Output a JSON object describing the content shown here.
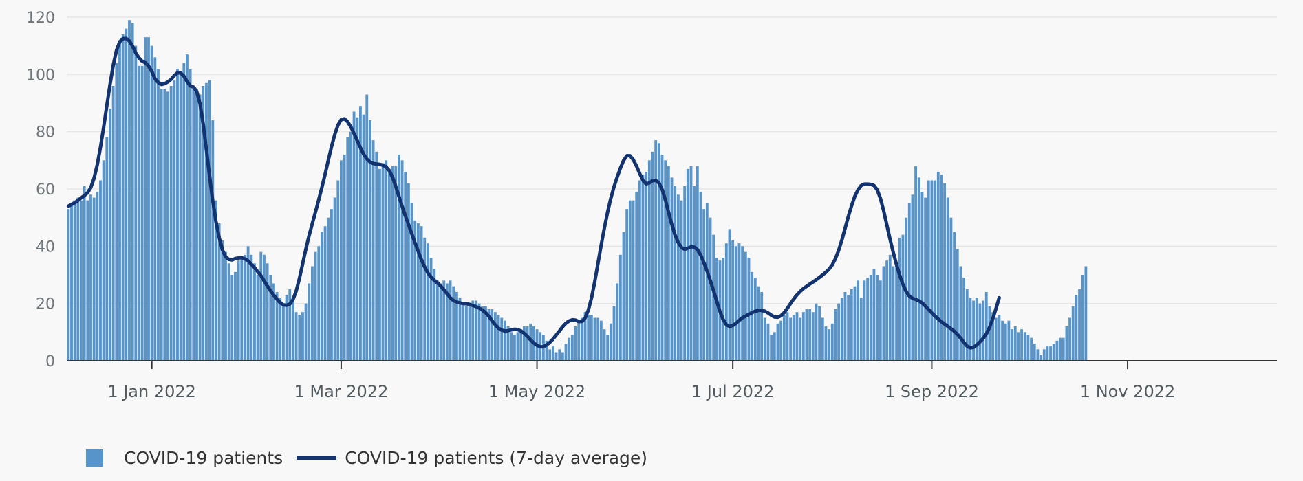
{
  "colors": {
    "bars": "#5694ca",
    "line": "#12336f",
    "grid": "#e6e6e6",
    "background": "#f8f8f8"
  },
  "chart_data": {
    "type": "bar",
    "title": "",
    "xlabel": "",
    "ylabel": "",
    "ylim": [
      0,
      120
    ],
    "yticks": [
      "0",
      "20",
      "40",
      "60",
      "80",
      "100",
      "120"
    ],
    "x_start_date": "2021-12-06",
    "x_end_date": "2022-12-17",
    "xticks": [
      {
        "date": "2022-01-01",
        "label": "1 Jan 2022"
      },
      {
        "date": "2022-03-01",
        "label": "1 Mar 2022"
      },
      {
        "date": "2022-05-01",
        "label": "1 May 2022"
      },
      {
        "date": "2022-07-01",
        "label": "1 Jul 2022"
      },
      {
        "date": "2022-09-01",
        "label": "1 Sep 2022"
      },
      {
        "date": "2022-11-01",
        "label": "1 Nov 2022"
      }
    ],
    "grid": true,
    "legend_position": "bottom-left",
    "series": [
      {
        "name": "COVID-19 patients",
        "type": "bar",
        "values": [
          53,
          55,
          56,
          57,
          56,
          61,
          56,
          58,
          57,
          59,
          63,
          70,
          78,
          88,
          96,
          104,
          111,
          114,
          116,
          119,
          118,
          110,
          103,
          103,
          113,
          113,
          110,
          106,
          102,
          95,
          95,
          94,
          96,
          98,
          102,
          100,
          104,
          107,
          102,
          96,
          95,
          93,
          96,
          97,
          98,
          84,
          56,
          48,
          42,
          38,
          34,
          30,
          31,
          35,
          36,
          37,
          40,
          37,
          34,
          30,
          38,
          37,
          34,
          30,
          27,
          24,
          22,
          20,
          23,
          25,
          21,
          17,
          16,
          17,
          20,
          27,
          33,
          38,
          40,
          45,
          47,
          50,
          53,
          57,
          63,
          70,
          72,
          78,
          80,
          87,
          85,
          89,
          86,
          93,
          84,
          77,
          73,
          67,
          69,
          70,
          67,
          68,
          68,
          72,
          70,
          66,
          62,
          55,
          49,
          48,
          47,
          43,
          41,
          36,
          32,
          28,
          27,
          28,
          27,
          28,
          26,
          24,
          22,
          20,
          19,
          20,
          21,
          21,
          20,
          19,
          19,
          18,
          18,
          17,
          16,
          15,
          14,
          12,
          10,
          9,
          10,
          11,
          12,
          12,
          13,
          12,
          11,
          10,
          9,
          7,
          4,
          5,
          3,
          4,
          3,
          6,
          8,
          9,
          12,
          14,
          15,
          17,
          16,
          16,
          15,
          15,
          14,
          11,
          9,
          13,
          19,
          27,
          37,
          45,
          53,
          56,
          56,
          59,
          63,
          65,
          66,
          70,
          73,
          77,
          76,
          72,
          70,
          68,
          64,
          61,
          58,
          56,
          61,
          67,
          68,
          61,
          68,
          59,
          53,
          55,
          50,
          44,
          36,
          35,
          36,
          41,
          46,
          42,
          40,
          41,
          40,
          38,
          36,
          31,
          29,
          26,
          24,
          15,
          13,
          9,
          10,
          13,
          14,
          16,
          17,
          15,
          16,
          17,
          15,
          17,
          18,
          18,
          17,
          20,
          19,
          15,
          12,
          11,
          13,
          18,
          20,
          22,
          24,
          23,
          25,
          26,
          28,
          22,
          28,
          29,
          30,
          32,
          30,
          28,
          33,
          35,
          37,
          33,
          33,
          43,
          44,
          50,
          55,
          58,
          68,
          64,
          59,
          57,
          63,
          63,
          63,
          66,
          65,
          62,
          57,
          50,
          45,
          39,
          33,
          29,
          25,
          22,
          21,
          22,
          20,
          21,
          24,
          19,
          17,
          15,
          16,
          14,
          13,
          14,
          11,
          12,
          10,
          11,
          10,
          9,
          8,
          6,
          4,
          2,
          4,
          5,
          5,
          6,
          7,
          8,
          8,
          12,
          15,
          19,
          23,
          25,
          30,
          33
        ]
      },
      {
        "name": "COVID-19 patients (7-day average)",
        "type": "line",
        "values": [
          54.0,
          54.6,
          55.2,
          56.0,
          56.9,
          57.7,
          58.7,
          60.5,
          63.7,
          68.4,
          74.5,
          81.6,
          89.2,
          96.6,
          103.3,
          108.4,
          111.4,
          112.5,
          112.6,
          111.7,
          109.9,
          107.5,
          105.8,
          104.6,
          104.1,
          102.9,
          101.0,
          98.5,
          97.2,
          96.5,
          96.8,
          97.4,
          98.3,
          99.6,
          100.6,
          100.5,
          99.4,
          97.5,
          96.0,
          95.6,
          94.0,
          89.9,
          82.8,
          73.8,
          64.4,
          55.8,
          48.5,
          43.0,
          38.7,
          36.3,
          35.4,
          35.2,
          35.7,
          35.9,
          36.0,
          35.6,
          34.9,
          33.7,
          32.5,
          31.1,
          29.7,
          27.9,
          26.1,
          24.4,
          22.9,
          21.5,
          20.3,
          19.5,
          19.4,
          19.8,
          21.4,
          24.4,
          28.8,
          33.9,
          39.0,
          43.7,
          47.9,
          52.0,
          56.2,
          60.6,
          65.2,
          70.1,
          74.8,
          79.0,
          82.3,
          84.2,
          84.5,
          83.5,
          81.7,
          79.4,
          76.9,
          74.4,
          72.1,
          70.5,
          69.4,
          68.9,
          68.7,
          68.6,
          68.3,
          67.7,
          66.4,
          64.1,
          60.9,
          57.4,
          53.9,
          50.6,
          47.5,
          44.3,
          41.2,
          38.2,
          35.3,
          32.8,
          30.7,
          29.2,
          28.1,
          27.2,
          26.1,
          24.8,
          23.4,
          22.0,
          21.0,
          20.5,
          20.2,
          20.0,
          19.9,
          19.7,
          19.3,
          18.9,
          18.4,
          17.7,
          16.8,
          15.5,
          14.0,
          12.6,
          11.4,
          10.7,
          10.4,
          10.5,
          10.8,
          11.0,
          10.9,
          10.4,
          9.6,
          8.5,
          7.3,
          6.2,
          5.4,
          4.9,
          4.9,
          5.5,
          6.4,
          7.6,
          9.0,
          10.4,
          11.9,
          13.1,
          13.9,
          14.3,
          14.2,
          13.7,
          13.7,
          14.9,
          17.7,
          22.0,
          27.6,
          34.0,
          40.4,
          46.4,
          51.9,
          56.7,
          60.8,
          64.2,
          67.3,
          70.0,
          71.6,
          71.6,
          70.2,
          68.0,
          65.4,
          63.0,
          61.8,
          62.1,
          62.9,
          63.0,
          62.1,
          59.8,
          56.2,
          51.8,
          47.6,
          44.0,
          41.3,
          39.6,
          38.9,
          39.3,
          39.8,
          39.7,
          38.8,
          36.9,
          34.3,
          31.3,
          28.0,
          24.5,
          20.8,
          17.2,
          14.4,
          12.6,
          12.0,
          12.3,
          13.1,
          14.1,
          15.0,
          15.6,
          16.2,
          16.8,
          17.3,
          17.6,
          17.6,
          17.3,
          16.7,
          15.9,
          15.3,
          15.2,
          15.7,
          16.8,
          18.3,
          20.0,
          21.6,
          23.0,
          24.2,
          25.2,
          26.0,
          26.8,
          27.5,
          28.3,
          29.1,
          30.0,
          30.9,
          32.0,
          33.5,
          35.7,
          38.6,
          42.2,
          46.3,
          50.4,
          54.1,
          57.4,
          59.7,
          61.2,
          61.7,
          61.7,
          61.6,
          61.2,
          59.7,
          56.7,
          52.4,
          47.4,
          42.4,
          37.8,
          33.6,
          29.8,
          26.7,
          24.2,
          22.6,
          21.8,
          21.4,
          20.9,
          20.2,
          19.1,
          17.9,
          16.7,
          15.6,
          14.6,
          13.6,
          12.8,
          12.0,
          11.2,
          10.3,
          9.2,
          7.9,
          6.4,
          5.1,
          4.5,
          4.7,
          5.5,
          6.6,
          7.8,
          9.4,
          11.7,
          14.7,
          18.2,
          22.0
        ]
      }
    ]
  }
}
